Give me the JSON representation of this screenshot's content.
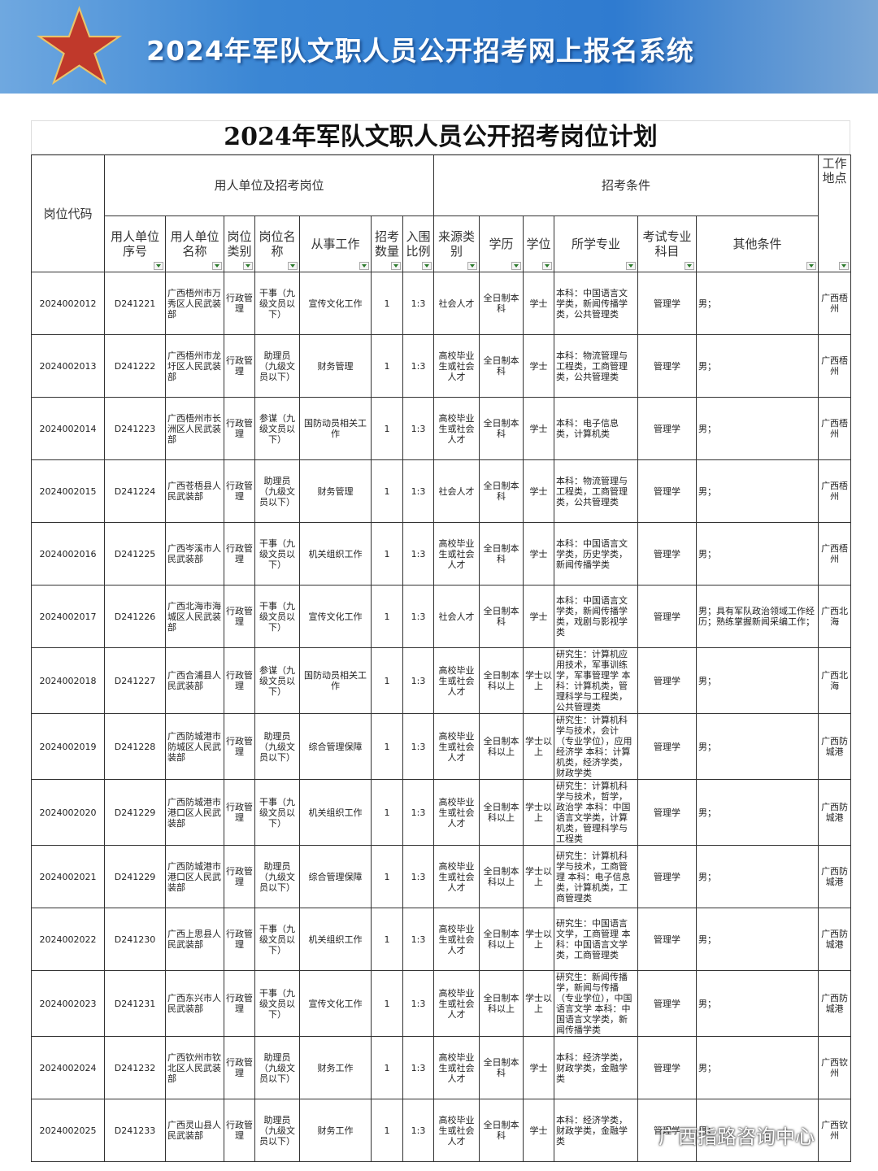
{
  "header": {
    "title": "2024年军队文职人员公开招考网上报名系统"
  },
  "table": {
    "title": "2024年军队文职人员公开招考岗位计划",
    "group_headers": {
      "code": "岗位代码",
      "unit": "用人单位及招考岗位",
      "conditions": "招考条件",
      "location": "工作地点"
    },
    "columns": [
      "用人单位序号",
      "用人单位名称",
      "岗位类别",
      "岗位名称",
      "从事工作",
      "招考数量",
      "入围比例",
      "来源类别",
      "学历",
      "学位",
      "所学专业",
      "考试专业科目",
      "其他条件"
    ],
    "rows": [
      [
        "2024002012",
        "D241221",
        "广西梧州市万秀区人民武装部",
        "行政管理",
        "干事（九级文员以下）",
        "宣传文化工作",
        1,
        "1:3",
        "社会人才",
        "全日制本科",
        "学士",
        "本科：中国语言文学类，新闻传播学类，公共管理类",
        "管理学",
        "男；",
        "广西梧州"
      ],
      [
        "2024002013",
        "D241222",
        "广西梧州市龙圩区人民武装部",
        "行政管理",
        "助理员（九级文员以下）",
        "财务管理",
        1,
        "1:3",
        "高校毕业生或社会人才",
        "全日制本科",
        "学士",
        "本科：物流管理与工程类，工商管理类，公共管理类",
        "管理学",
        "男；",
        "广西梧州"
      ],
      [
        "2024002014",
        "D241223",
        "广西梧州市长洲区人民武装部",
        "行政管理",
        "参谋（九级文员以下）",
        "国防动员相关工作",
        1,
        "1:3",
        "高校毕业生或社会人才",
        "全日制本科",
        "学士",
        "本科：电子信息类，计算机类",
        "管理学",
        "男；",
        "广西梧州"
      ],
      [
        "2024002015",
        "D241224",
        "广西苍梧县人民武装部",
        "行政管理",
        "助理员（九级文员以下）",
        "财务管理",
        1,
        "1:3",
        "社会人才",
        "全日制本科",
        "学士",
        "本科：物流管理与工程类，工商管理类，公共管理类",
        "管理学",
        "男；",
        "广西梧州"
      ],
      [
        "2024002016",
        "D241225",
        "广西岑溪市人民武装部",
        "行政管理",
        "干事（九级文员以下）",
        "机关组织工作",
        1,
        "1:3",
        "高校毕业生或社会人才",
        "全日制本科",
        "学士",
        "本科：中国语言文学类，历史学类，新闻传播学类",
        "管理学",
        "男；",
        "广西梧州"
      ],
      [
        "2024002017",
        "D241226",
        "广西北海市海城区人民武装部",
        "行政管理",
        "干事（九级文员以下）",
        "宣传文化工作",
        1,
        "1:3",
        "社会人才",
        "全日制本科",
        "学士",
        "本科：中国语言文学类，新闻传播学类，戏剧与影视学类",
        "管理学",
        "男；具有军队政治领域工作经历；熟练掌握新闻采编工作；",
        "广西北海"
      ],
      [
        "2024002018",
        "D241227",
        "广西合浦县人民武装部",
        "行政管理",
        "参谋（九级文员以下）",
        "国防动员相关工作",
        1,
        "1:3",
        "高校毕业生或社会人才",
        "全日制本科以上",
        "学士以上",
        "研究生：计算机应用技术，军事训练学，军事管理学 本科：计算机类，管理科学与工程类，公共管理类",
        "管理学",
        "男；",
        "广西北海"
      ],
      [
        "2024002019",
        "D241228",
        "广西防城港市防城区人民武装部",
        "行政管理",
        "助理员（九级文员以下）",
        "综合管理保障",
        1,
        "1:3",
        "高校毕业生或社会人才",
        "全日制本科以上",
        "学士以上",
        "研究生：计算机科学与技术，会计（专业学位），应用经济学 本科：计算机类，经济学类，财政学类",
        "管理学",
        "男；",
        "广西防城港"
      ],
      [
        "2024002020",
        "D241229",
        "广西防城港市港口区人民武装部",
        "行政管理",
        "干事（九级文员以下）",
        "机关组织工作",
        1,
        "1:3",
        "高校毕业生或社会人才",
        "全日制本科以上",
        "学士以上",
        "研究生：计算机科学与技术，哲学，政治学 本科：中国语言文学类，计算机类，管理科学与工程类",
        "管理学",
        "男；",
        "广西防城港"
      ],
      [
        "2024002021",
        "D241229",
        "广西防城港市港口区人民武装部",
        "行政管理",
        "助理员（九级文员以下）",
        "综合管理保障",
        1,
        "1:3",
        "高校毕业生或社会人才",
        "全日制本科以上",
        "学士以上",
        "研究生：计算机科学与技术，工商管理 本科：电子信息类，计算机类，工商管理类",
        "管理学",
        "男；",
        "广西防城港"
      ],
      [
        "2024002022",
        "D241230",
        "广西上思县人民武装部",
        "行政管理",
        "干事（九级文员以下）",
        "机关组织工作",
        1,
        "1:3",
        "高校毕业生或社会人才",
        "全日制本科以上",
        "学士以上",
        "研究生：中国语言文学，工商管理 本科：中国语言文学类，工商管理类",
        "管理学",
        "男；",
        "广西防城港"
      ],
      [
        "2024002023",
        "D241231",
        "广西东兴市人民武装部",
        "行政管理",
        "干事（九级文员以下）",
        "宣传文化工作",
        1,
        "1:3",
        "高校毕业生或社会人才",
        "全日制本科以上",
        "学士以上",
        "研究生：新闻传播学，新闻与传播（专业学位），中国语言文学 本科：中国语言文学类，新闻传播学类",
        "管理学",
        "男；",
        "广西防城港"
      ],
      [
        "2024002024",
        "D241232",
        "广西钦州市钦北区人民武装部",
        "行政管理",
        "助理员（九级文员以下）",
        "财务工作",
        1,
        "1:3",
        "高校毕业生或社会人才",
        "全日制本科",
        "学士",
        "本科：经济学类，财政学类，金融学类",
        "管理学",
        "男；",
        "广西钦州"
      ],
      [
        "2024002025",
        "D241233",
        "广西灵山县人民武装部",
        "行政管理",
        "助理员（九级文员以下）",
        "财务工作",
        1,
        "1:3",
        "高校毕业生或社会人才",
        "全日制本科",
        "学士",
        "本科：经济学类，财政学类，金融学类",
        "管理学",
        "男；",
        "广西钦州"
      ]
    ]
  },
  "watermark": "广西指路咨询中心"
}
